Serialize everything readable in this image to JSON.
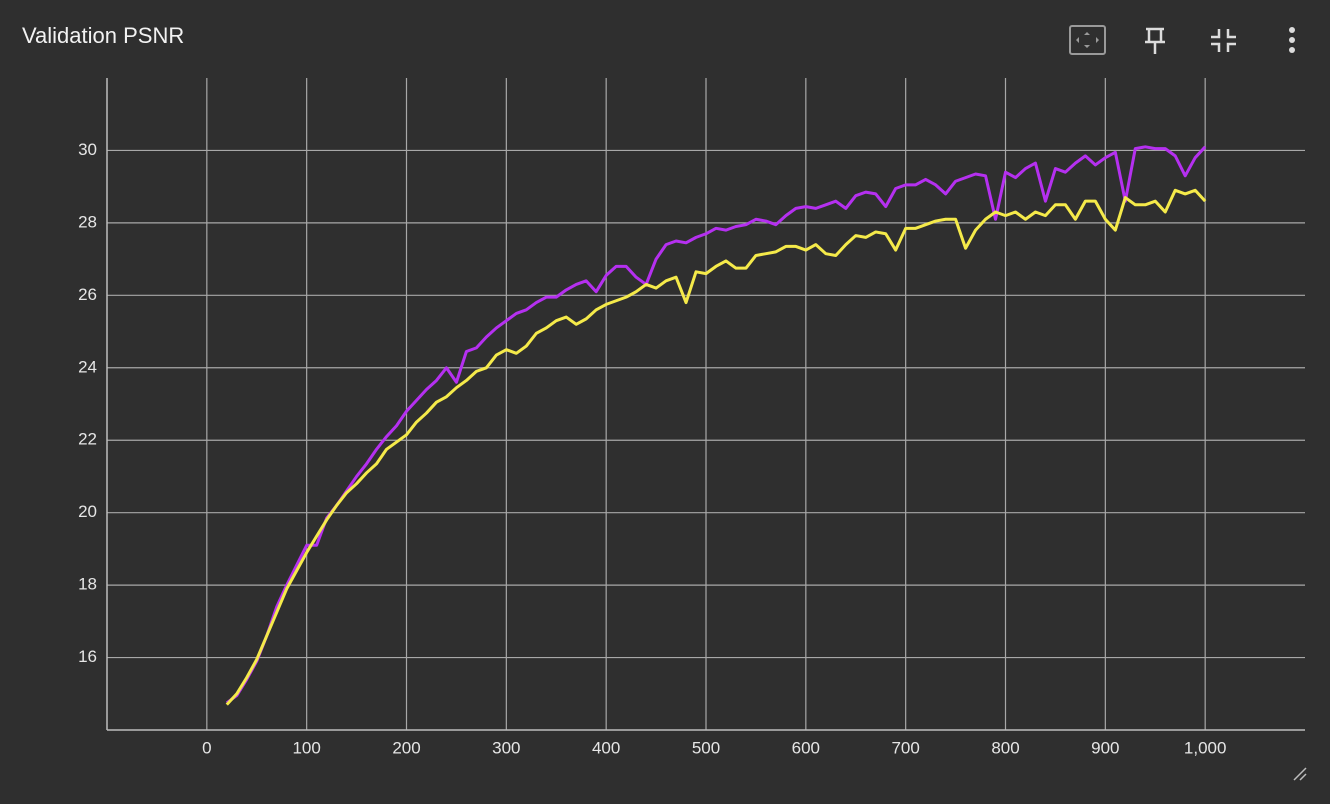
{
  "chart_data": {
    "type": "line",
    "title": "Validation PSNR",
    "x": [
      20,
      30,
      40,
      50,
      60,
      70,
      80,
      90,
      100,
      110,
      120,
      130,
      140,
      150,
      160,
      170,
      180,
      190,
      200,
      210,
      220,
      230,
      240,
      250,
      260,
      270,
      280,
      290,
      300,
      310,
      320,
      330,
      340,
      350,
      360,
      370,
      380,
      390,
      400,
      410,
      420,
      430,
      440,
      450,
      460,
      470,
      480,
      490,
      500,
      510,
      520,
      530,
      540,
      550,
      560,
      570,
      580,
      590,
      600,
      610,
      620,
      630,
      640,
      650,
      660,
      670,
      680,
      690,
      700,
      710,
      720,
      730,
      740,
      750,
      760,
      770,
      780,
      790,
      800,
      810,
      820,
      830,
      840,
      850,
      860,
      870,
      880,
      890,
      900,
      910,
      920,
      930,
      940,
      950,
      960,
      970,
      980,
      990,
      1000
    ],
    "series": [
      {
        "color": "#b530f0",
        "values": [
          14.75,
          14.95,
          15.4,
          15.9,
          16.6,
          17.4,
          18.0,
          18.55,
          19.1,
          19.1,
          19.85,
          20.2,
          20.6,
          21.0,
          21.35,
          21.75,
          22.1,
          22.4,
          22.8,
          23.1,
          23.4,
          23.65,
          24.0,
          23.6,
          24.45,
          24.55,
          24.85,
          25.1,
          25.3,
          25.5,
          25.6,
          25.8,
          25.95,
          25.95,
          26.15,
          26.3,
          26.4,
          26.1,
          26.55,
          26.8,
          26.8,
          26.5,
          26.3,
          27.0,
          27.4,
          27.5,
          27.45,
          27.6,
          27.7,
          27.85,
          27.8,
          27.9,
          27.95,
          28.1,
          28.05,
          27.95,
          28.2,
          28.4,
          28.45,
          28.4,
          28.5,
          28.6,
          28.4,
          28.75,
          28.85,
          28.8,
          28.45,
          28.95,
          29.05,
          29.05,
          29.2,
          29.05,
          28.8,
          29.15,
          29.25,
          29.35,
          29.3,
          28.1,
          29.4,
          29.25,
          29.5,
          29.65,
          28.6,
          29.5,
          29.4,
          29.65,
          29.85,
          29.6,
          29.8,
          29.95,
          28.6,
          30.05,
          30.1,
          30.05,
          30.05,
          29.85,
          29.3,
          29.8,
          30.1
        ]
      },
      {
        "color": "#f5ea4a",
        "values": [
          14.7,
          15.0,
          15.45,
          15.95,
          16.6,
          17.25,
          17.9,
          18.4,
          18.9,
          19.35,
          19.8,
          20.2,
          20.55,
          20.8,
          21.1,
          21.35,
          21.75,
          21.95,
          22.15,
          22.5,
          22.75,
          23.05,
          23.2,
          23.45,
          23.65,
          23.9,
          24.0,
          24.35,
          24.5,
          24.4,
          24.6,
          24.95,
          25.1,
          25.3,
          25.4,
          25.2,
          25.35,
          25.6,
          25.75,
          25.85,
          25.95,
          26.1,
          26.3,
          26.2,
          26.4,
          26.5,
          25.8,
          26.65,
          26.6,
          26.8,
          26.95,
          26.75,
          26.75,
          27.1,
          27.15,
          27.2,
          27.35,
          27.35,
          27.25,
          27.4,
          27.15,
          27.1,
          27.4,
          27.65,
          27.6,
          27.75,
          27.7,
          27.25,
          27.85,
          27.85,
          27.95,
          28.05,
          28.1,
          28.1,
          27.3,
          27.8,
          28.1,
          28.3,
          28.2,
          28.3,
          28.1,
          28.3,
          28.2,
          28.5,
          28.5,
          28.1,
          28.6,
          28.6,
          28.1,
          27.8,
          28.7,
          28.5,
          28.5,
          28.6,
          28.3,
          28.9,
          28.8,
          28.9,
          28.6
        ]
      }
    ],
    "xlim": [
      -100,
      1100
    ],
    "xticks": [
      0,
      100,
      200,
      300,
      400,
      500,
      600,
      700,
      800,
      900,
      {
        "value": 1000,
        "label": "1,000"
      }
    ],
    "ylim": [
      14,
      32
    ],
    "yticks": [
      16,
      18,
      20,
      22,
      24,
      26,
      28,
      30
    ],
    "grid": true
  }
}
